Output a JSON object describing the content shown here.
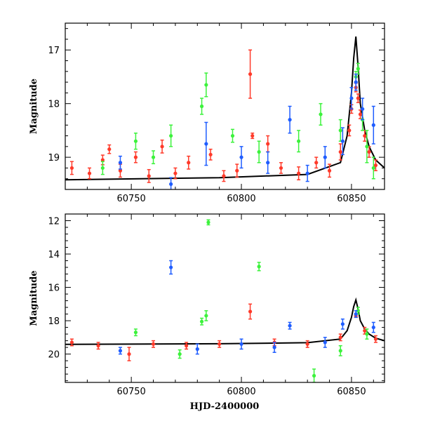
{
  "chart_data": [
    {
      "type": "scatter",
      "panel": "top",
      "xlabel": "",
      "ylabel": "Magnitude",
      "xlim": [
        60720,
        60865
      ],
      "ylim": [
        19.6,
        16.5
      ],
      "y_inverted": true,
      "x_ticks": [
        60750,
        60800,
        60850
      ],
      "y_ticks": [
        17,
        18,
        19
      ],
      "grid": false,
      "series": [
        {
          "color": "#ff3a2a",
          "marker": "circle-with-errorbars",
          "points": [
            {
              "x": 60723,
              "y": 19.2,
              "err": 0.12
            },
            {
              "x": 60731,
              "y": 19.3,
              "err": 0.1
            },
            {
              "x": 60737,
              "y": 19.05,
              "err": 0.09
            },
            {
              "x": 60740,
              "y": 18.85,
              "err": 0.08
            },
            {
              "x": 60745,
              "y": 19.25,
              "err": 0.12
            },
            {
              "x": 60752,
              "y": 19.0,
              "err": 0.1
            },
            {
              "x": 60758,
              "y": 19.35,
              "err": 0.12
            },
            {
              "x": 60764,
              "y": 18.8,
              "err": 0.12
            },
            {
              "x": 60770,
              "y": 19.3,
              "err": 0.1
            },
            {
              "x": 60776,
              "y": 19.1,
              "err": 0.12
            },
            {
              "x": 60786,
              "y": 18.95,
              "err": 0.1
            },
            {
              "x": 60792,
              "y": 19.35,
              "err": 0.1
            },
            {
              "x": 60798,
              "y": 19.25,
              "err": 0.12
            },
            {
              "x": 60804,
              "y": 17.45,
              "err": 0.45
            },
            {
              "x": 60805,
              "y": 18.6,
              "err": 0.05
            },
            {
              "x": 60812,
              "y": 18.75,
              "err": 0.15
            },
            {
              "x": 60818,
              "y": 19.2,
              "err": 0.1
            },
            {
              "x": 60826,
              "y": 19.3,
              "err": 0.12
            },
            {
              "x": 60834,
              "y": 19.1,
              "err": 0.1
            },
            {
              "x": 60840,
              "y": 19.25,
              "err": 0.12
            },
            {
              "x": 60845,
              "y": 18.9,
              "err": 0.15
            },
            {
              "x": 60849,
              "y": 18.5,
              "err": 0.1
            },
            {
              "x": 60850,
              "y": 18.1,
              "err": 0.08
            },
            {
              "x": 60852,
              "y": 17.7,
              "err": 0.08
            },
            {
              "x": 60853,
              "y": 17.9,
              "err": 0.08
            },
            {
              "x": 60854,
              "y": 18.2,
              "err": 0.08
            },
            {
              "x": 60856,
              "y": 18.6,
              "err": 0.1
            },
            {
              "x": 60858,
              "y": 18.9,
              "err": 0.1
            },
            {
              "x": 60861,
              "y": 19.15,
              "err": 0.1
            }
          ]
        },
        {
          "color": "#3cf23c",
          "marker": "circle-with-errorbars",
          "points": [
            {
              "x": 60737,
              "y": 19.2,
              "err": 0.12
            },
            {
              "x": 60752,
              "y": 18.7,
              "err": 0.15
            },
            {
              "x": 60760,
              "y": 19.0,
              "err": 0.12
            },
            {
              "x": 60768,
              "y": 18.6,
              "err": 0.2
            },
            {
              "x": 60782,
              "y": 18.05,
              "err": 0.15
            },
            {
              "x": 60784,
              "y": 17.65,
              "err": 0.22
            },
            {
              "x": 60796,
              "y": 18.6,
              "err": 0.12
            },
            {
              "x": 60808,
              "y": 18.9,
              "err": 0.2
            },
            {
              "x": 60826,
              "y": 18.7,
              "err": 0.2
            },
            {
              "x": 60836,
              "y": 18.2,
              "err": 0.2
            },
            {
              "x": 60845,
              "y": 18.5,
              "err": 0.2
            },
            {
              "x": 60852,
              "y": 17.5,
              "err": 0.1
            },
            {
              "x": 60853,
              "y": 17.35,
              "err": 0.1
            },
            {
              "x": 60855,
              "y": 18.3,
              "err": 0.2
            },
            {
              "x": 60857,
              "y": 18.8,
              "err": 0.3
            },
            {
              "x": 60860,
              "y": 19.2,
              "err": 0.2
            }
          ]
        },
        {
          "color": "#1f5dff",
          "marker": "circle-with-errorbars",
          "points": [
            {
              "x": 60745,
              "y": 19.1,
              "err": 0.12
            },
            {
              "x": 60768,
              "y": 19.5,
              "err": 0.12
            },
            {
              "x": 60784,
              "y": 18.75,
              "err": 0.4
            },
            {
              "x": 60800,
              "y": 19.0,
              "err": 0.2
            },
            {
              "x": 60812,
              "y": 19.1,
              "err": 0.2
            },
            {
              "x": 60822,
              "y": 18.3,
              "err": 0.25
            },
            {
              "x": 60830,
              "y": 19.3,
              "err": 0.15
            },
            {
              "x": 60838,
              "y": 19.0,
              "err": 0.2
            },
            {
              "x": 60846,
              "y": 18.7,
              "err": 0.25
            },
            {
              "x": 60850,
              "y": 17.9,
              "err": 0.2
            },
            {
              "x": 60852,
              "y": 17.6,
              "err": 0.15
            },
            {
              "x": 60855,
              "y": 18.1,
              "err": 0.2
            },
            {
              "x": 60860,
              "y": 18.4,
              "err": 0.35
            }
          ]
        }
      ],
      "model_curve": {
        "color": "#000000",
        "x": [
          60720,
          60790,
          60830,
          60845,
          60848,
          60850,
          60851,
          60852,
          60853,
          60854,
          60856,
          60858,
          60861,
          60865
        ],
        "y": [
          19.42,
          19.38,
          19.32,
          19.1,
          18.6,
          17.8,
          17.15,
          16.75,
          17.3,
          18.0,
          18.5,
          18.8,
          19.05,
          19.2
        ]
      }
    },
    {
      "type": "scatter",
      "panel": "bottom",
      "xlabel": "HJD-2400000",
      "ylabel": "Magnitude",
      "xlim": [
        60720,
        60865
      ],
      "ylim": [
        21.7,
        11.6
      ],
      "y_inverted": true,
      "x_ticks": [
        60750,
        60800,
        60850
      ],
      "y_ticks": [
        12,
        14,
        16,
        18,
        20
      ],
      "grid": false,
      "series": [
        {
          "color": "#ff3a2a",
          "marker": "circle-with-errorbars",
          "points": [
            {
              "x": 60723,
              "y": 19.3,
              "err": 0.2
            },
            {
              "x": 60735,
              "y": 19.5,
              "err": 0.2
            },
            {
              "x": 60749,
              "y": 20.0,
              "err": 0.4
            },
            {
              "x": 60760,
              "y": 19.4,
              "err": 0.2
            },
            {
              "x": 60775,
              "y": 19.5,
              "err": 0.2
            },
            {
              "x": 60790,
              "y": 19.4,
              "err": 0.2
            },
            {
              "x": 60804,
              "y": 17.45,
              "err": 0.45
            },
            {
              "x": 60815,
              "y": 19.3,
              "err": 0.2
            },
            {
              "x": 60830,
              "y": 19.4,
              "err": 0.2
            },
            {
              "x": 60845,
              "y": 19.0,
              "err": 0.2
            },
            {
              "x": 60852,
              "y": 17.7,
              "err": 0.1
            },
            {
              "x": 60856,
              "y": 18.6,
              "err": 0.2
            },
            {
              "x": 60861,
              "y": 19.1,
              "err": 0.2
            }
          ]
        },
        {
          "color": "#3cf23c",
          "marker": "circle-with-errorbars",
          "points": [
            {
              "x": 60752,
              "y": 18.7,
              "err": 0.2
            },
            {
              "x": 60772,
              "y": 20.0,
              "err": 0.25
            },
            {
              "x": 60782,
              "y": 18.05,
              "err": 0.2
            },
            {
              "x": 60784,
              "y": 17.7,
              "err": 0.3
            },
            {
              "x": 60785,
              "y": 12.1,
              "err": 0.15
            },
            {
              "x": 60808,
              "y": 14.75,
              "err": 0.25
            },
            {
              "x": 60833,
              "y": 21.3,
              "err": 0.4
            },
            {
              "x": 60845,
              "y": 19.8,
              "err": 0.3
            },
            {
              "x": 60853,
              "y": 17.4,
              "err": 0.2
            },
            {
              "x": 60857,
              "y": 18.8,
              "err": 0.3
            }
          ]
        },
        {
          "color": "#1f5dff",
          "marker": "circle-with-errorbars",
          "points": [
            {
              "x": 60745,
              "y": 19.8,
              "err": 0.2
            },
            {
              "x": 60768,
              "y": 14.8,
              "err": 0.4
            },
            {
              "x": 60780,
              "y": 19.7,
              "err": 0.3
            },
            {
              "x": 60800,
              "y": 19.4,
              "err": 0.3
            },
            {
              "x": 60815,
              "y": 19.6,
              "err": 0.3
            },
            {
              "x": 60822,
              "y": 18.3,
              "err": 0.2
            },
            {
              "x": 60838,
              "y": 19.3,
              "err": 0.3
            },
            {
              "x": 60846,
              "y": 18.2,
              "err": 0.3
            },
            {
              "x": 60852,
              "y": 17.6,
              "err": 0.2
            },
            {
              "x": 60860,
              "y": 18.4,
              "err": 0.3
            }
          ]
        }
      ],
      "model_curve": {
        "color": "#000000",
        "x": [
          60720,
          60790,
          60830,
          60845,
          60848,
          60850,
          60851,
          60852,
          60853,
          60854,
          60856,
          60858,
          60861,
          60865
        ],
        "y": [
          19.42,
          19.38,
          19.32,
          19.1,
          18.6,
          17.8,
          17.15,
          16.75,
          17.3,
          18.0,
          18.5,
          18.8,
          19.05,
          19.2
        ]
      }
    }
  ]
}
